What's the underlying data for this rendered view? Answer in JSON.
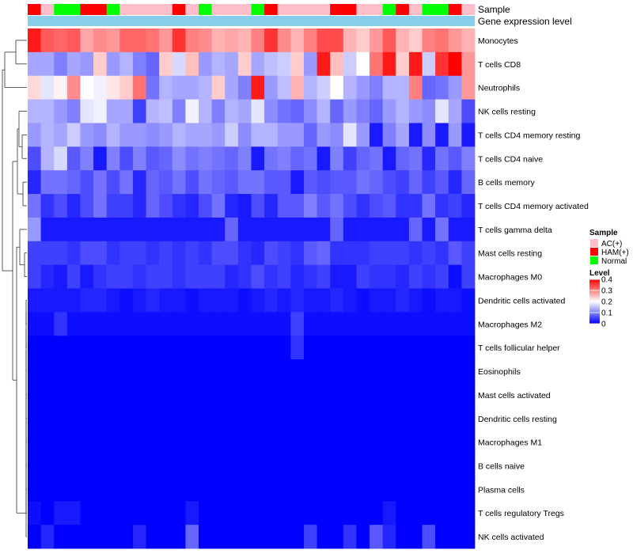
{
  "chart_data": {
    "type": "heatmap",
    "annotation_labels": {
      "sample": "Sample",
      "gene_expression": "Gene expression level"
    },
    "sample_groups": [
      "HAM(+)",
      "AC(+)",
      "Normal",
      "Normal",
      "HAM(+)",
      "HAM(+)",
      "Normal",
      "AC(+)",
      "AC(+)",
      "AC(+)",
      "AC(+)",
      "HAM(+)",
      "AC(+)",
      "Normal",
      "AC(+)",
      "AC(+)",
      "AC(+)",
      "Normal",
      "HAM(+)",
      "AC(+)",
      "AC(+)",
      "AC(+)",
      "AC(+)",
      "HAM(+)",
      "HAM(+)",
      "AC(+)",
      "AC(+)",
      "Normal",
      "HAM(+)",
      "AC(+)",
      "Normal",
      "Normal",
      "HAM(+)",
      "AC(+)"
    ],
    "rows": [
      "Monocytes",
      "T cells CD8",
      "Neutrophils",
      "NK cells resting",
      "T cells CD4 memory resting",
      "T cells CD4 naive",
      "B cells memory",
      "T cells CD4 memory activated",
      "T cells gamma delta",
      "Mast cells resting",
      "Macrophages M0",
      "Dendritic cells activated",
      "Macrophages M2",
      "T cells follicular helper",
      "Eosinophils",
      "Mast cells activated",
      "Dendritic cells resting",
      "Macrophages M1",
      "B cells naive",
      "Plasma cells",
      "T cells regulatory  Tregs",
      "NK cells activated"
    ],
    "values": [
      [
        0.38,
        0.33,
        0.32,
        0.33,
        0.27,
        0.29,
        0.28,
        0.32,
        0.32,
        0.31,
        0.28,
        0.36,
        0.3,
        0.29,
        0.26,
        0.27,
        0.26,
        0.3,
        0.36,
        0.29,
        0.26,
        0.3,
        0.34,
        0.34,
        0.26,
        0.24,
        0.28,
        0.33,
        0.26,
        0.24,
        0.3,
        0.31,
        0.28,
        0.26
      ],
      [
        0.13,
        0.13,
        0.1,
        0.13,
        0.12,
        0.24,
        0.12,
        0.14,
        0.1,
        0.08,
        0.24,
        0.17,
        0.25,
        0.12,
        0.14,
        0.13,
        0.24,
        0.13,
        0.15,
        0.16,
        0.24,
        0.12,
        0.38,
        0.25,
        0.16,
        0.2,
        0.31,
        0.38,
        0.24,
        0.38,
        0.16,
        0.36,
        0.4,
        0.28
      ],
      [
        0.23,
        0.18,
        0.21,
        0.29,
        0.2,
        0.19,
        0.22,
        0.24,
        0.31,
        0.09,
        0.14,
        0.13,
        0.13,
        0.14,
        0.24,
        0.13,
        0.1,
        0.38,
        0.12,
        0.15,
        0.26,
        0.14,
        0.16,
        0.2,
        0.14,
        0.12,
        0.1,
        0.14,
        0.14,
        0.3,
        0.08,
        0.09,
        0.12,
        0.28
      ],
      [
        0.14,
        0.14,
        0.12,
        0.1,
        0.18,
        0.19,
        0.13,
        0.13,
        0.05,
        0.14,
        0.15,
        0.1,
        0.19,
        0.14,
        0.1,
        0.14,
        0.13,
        0.18,
        0.11,
        0.09,
        0.08,
        0.11,
        0.14,
        0.08,
        0.12,
        0.1,
        0.08,
        0.12,
        0.14,
        0.12,
        0.11,
        0.18,
        0.13,
        0.06
      ],
      [
        0.12,
        0.14,
        0.13,
        0.16,
        0.12,
        0.11,
        0.14,
        0.12,
        0.12,
        0.11,
        0.12,
        0.14,
        0.13,
        0.13,
        0.12,
        0.16,
        0.11,
        0.14,
        0.14,
        0.12,
        0.12,
        0.08,
        0.12,
        0.11,
        0.18,
        0.12,
        0.02,
        0.1,
        0.13,
        0.02,
        0.11,
        0.02,
        0.12,
        0.02
      ],
      [
        0.06,
        0.14,
        0.17,
        0.07,
        0.1,
        0.02,
        0.1,
        0.06,
        0.1,
        0.07,
        0.08,
        0.11,
        0.09,
        0.1,
        0.09,
        0.08,
        0.1,
        0.02,
        0.09,
        0.1,
        0.08,
        0.09,
        0.02,
        0.1,
        0.05,
        0.08,
        0.09,
        0.02,
        0.08,
        0.09,
        0.03,
        0.09,
        0.07,
        0.1
      ],
      [
        0.03,
        0.09,
        0.09,
        0.08,
        0.06,
        0.09,
        0.06,
        0.09,
        0.03,
        0.08,
        0.07,
        0.09,
        0.06,
        0.09,
        0.08,
        0.07,
        0.09,
        0.09,
        0.07,
        0.07,
        0.02,
        0.07,
        0.06,
        0.07,
        0.07,
        0.09,
        0.08,
        0.06,
        0.05,
        0.08,
        0.05,
        0.07,
        0.03,
        0.08
      ],
      [
        0.09,
        0.04,
        0.06,
        0.03,
        0.06,
        0.09,
        0.05,
        0.05,
        0.03,
        0.08,
        0.06,
        0.04,
        0.03,
        0.06,
        0.09,
        0.03,
        0.02,
        0.06,
        0.03,
        0.07,
        0.07,
        0.1,
        0.07,
        0.09,
        0.06,
        0.04,
        0.06,
        0.07,
        0.04,
        0.04,
        0.09,
        0.04,
        0.05,
        0.03
      ],
      [
        0.12,
        0.02,
        0.02,
        0.02,
        0.02,
        0.02,
        0.02,
        0.02,
        0.02,
        0.02,
        0.02,
        0.02,
        0.02,
        0.02,
        0.02,
        0.08,
        0.02,
        0.02,
        0.02,
        0.02,
        0.02,
        0.02,
        0.02,
        0.08,
        0.02,
        0.02,
        0.02,
        0.02,
        0.02,
        0.08,
        0.02,
        0.09,
        0.02,
        0.02
      ],
      [
        0.05,
        0.05,
        0.05,
        0.04,
        0.06,
        0.06,
        0.04,
        0.05,
        0.05,
        0.04,
        0.05,
        0.04,
        0.05,
        0.04,
        0.06,
        0.06,
        0.04,
        0.03,
        0.06,
        0.05,
        0.04,
        0.07,
        0.08,
        0.04,
        0.04,
        0.04,
        0.05,
        0.05,
        0.05,
        0.04,
        0.05,
        0.04,
        0.07,
        0.05
      ],
      [
        0.05,
        0.03,
        0.02,
        0.05,
        0.02,
        0.04,
        0.05,
        0.05,
        0.04,
        0.05,
        0.05,
        0.04,
        0.05,
        0.05,
        0.05,
        0.03,
        0.04,
        0.06,
        0.04,
        0.05,
        0.03,
        0.04,
        0.05,
        0.02,
        0.02,
        0.05,
        0.04,
        0.04,
        0.03,
        0.05,
        0.04,
        0.05,
        0.01,
        0.05
      ],
      [
        0.02,
        0.02,
        0.02,
        0.02,
        0.03,
        0.03,
        0.02,
        0.01,
        0.02,
        0.03,
        0.02,
        0.02,
        0.01,
        0.02,
        0.02,
        0.02,
        0.01,
        0.02,
        0.03,
        0.02,
        0.03,
        0.02,
        0.02,
        0.03,
        0.02,
        0.01,
        0.02,
        0.02,
        0.03,
        0.02,
        0.01,
        0.02,
        0.02,
        0.01
      ],
      [
        0.01,
        0.01,
        0.04,
        0.01,
        0.01,
        0.01,
        0.01,
        0.01,
        0.01,
        0.01,
        0.01,
        0.01,
        0.01,
        0.01,
        0.01,
        0.01,
        0.01,
        0.01,
        0.01,
        0.01,
        0.05,
        0.01,
        0.01,
        0.01,
        0.01,
        0.01,
        0.01,
        0.01,
        0.01,
        0.01,
        0.01,
        0.01,
        0.01,
        0.01
      ],
      [
        0.0,
        0.0,
        0.0,
        0.0,
        0.0,
        0.0,
        0.0,
        0.0,
        0.0,
        0.0,
        0.0,
        0.0,
        0.0,
        0.0,
        0.0,
        0.0,
        0.0,
        0.0,
        0.0,
        0.0,
        0.04,
        0.0,
        0.0,
        0.0,
        0.0,
        0.0,
        0.0,
        0.0,
        0.0,
        0.0,
        0.0,
        0.0,
        0.0,
        0.0
      ],
      [
        0.0,
        0.0,
        0.0,
        0.0,
        0.0,
        0.0,
        0.0,
        0.0,
        0.0,
        0.0,
        0.0,
        0.0,
        0.0,
        0.0,
        0.0,
        0.0,
        0.0,
        0.0,
        0.0,
        0.0,
        0.0,
        0.0,
        0.0,
        0.0,
        0.0,
        0.0,
        0.0,
        0.0,
        0.0,
        0.0,
        0.0,
        0.0,
        0.0,
        0.0
      ],
      [
        0.0,
        0.0,
        0.0,
        0.0,
        0.0,
        0.0,
        0.0,
        0.0,
        0.0,
        0.0,
        0.0,
        0.0,
        0.0,
        0.0,
        0.0,
        0.0,
        0.0,
        0.0,
        0.0,
        0.0,
        0.0,
        0.0,
        0.0,
        0.0,
        0.0,
        0.0,
        0.0,
        0.0,
        0.0,
        0.0,
        0.0,
        0.0,
        0.0,
        0.0
      ],
      [
        0.0,
        0.0,
        0.0,
        0.0,
        0.0,
        0.0,
        0.0,
        0.0,
        0.0,
        0.0,
        0.0,
        0.0,
        0.0,
        0.0,
        0.0,
        0.0,
        0.0,
        0.0,
        0.0,
        0.0,
        0.0,
        0.0,
        0.0,
        0.0,
        0.0,
        0.0,
        0.0,
        0.0,
        0.0,
        0.0,
        0.0,
        0.0,
        0.0,
        0.0
      ],
      [
        0.0,
        0.0,
        0.0,
        0.0,
        0.0,
        0.0,
        0.0,
        0.0,
        0.0,
        0.0,
        0.0,
        0.0,
        0.0,
        0.0,
        0.0,
        0.0,
        0.0,
        0.0,
        0.0,
        0.0,
        0.0,
        0.0,
        0.0,
        0.0,
        0.0,
        0.0,
        0.0,
        0.0,
        0.0,
        0.0,
        0.0,
        0.0,
        0.0,
        0.0
      ],
      [
        0.0,
        0.0,
        0.0,
        0.0,
        0.0,
        0.0,
        0.0,
        0.0,
        0.0,
        0.0,
        0.0,
        0.0,
        0.0,
        0.0,
        0.0,
        0.0,
        0.0,
        0.0,
        0.0,
        0.0,
        0.0,
        0.0,
        0.0,
        0.0,
        0.0,
        0.0,
        0.0,
        0.0,
        0.0,
        0.0,
        0.0,
        0.0,
        0.0,
        0.0
      ],
      [
        0.0,
        0.0,
        0.0,
        0.0,
        0.0,
        0.0,
        0.0,
        0.0,
        0.0,
        0.0,
        0.0,
        0.0,
        0.0,
        0.0,
        0.0,
        0.0,
        0.0,
        0.0,
        0.0,
        0.0,
        0.0,
        0.0,
        0.0,
        0.0,
        0.0,
        0.0,
        0.0,
        0.0,
        0.0,
        0.0,
        0.0,
        0.0,
        0.0,
        0.0
      ],
      [
        0.01,
        0.0,
        0.02,
        0.02,
        0.0,
        0.0,
        0.0,
        0.0,
        0.0,
        0.0,
        0.0,
        0.0,
        0.02,
        0.0,
        0.0,
        0.0,
        0.0,
        0.0,
        0.0,
        0.0,
        0.0,
        0.0,
        0.0,
        0.0,
        0.0,
        0.0,
        0.0,
        0.02,
        0.0,
        0.0,
        0.0,
        0.0,
        0.0,
        0.0
      ],
      [
        0.0,
        0.03,
        0.0,
        0.0,
        0.0,
        0.0,
        0.0,
        0.0,
        0.03,
        0.0,
        0.0,
        0.0,
        0.08,
        0.0,
        0.0,
        0.0,
        0.0,
        0.0,
        0.0,
        0.0,
        0.0,
        0.05,
        0.0,
        0.0,
        0.04,
        0.0,
        0.07,
        0.03,
        0.0,
        0.0,
        0.06,
        0.0,
        0.0,
        0.0
      ]
    ],
    "value_range": [
      0,
      0.4
    ],
    "colors": {
      "low": "#0000ff",
      "mid": "#ffffff",
      "high": "#ff0000",
      "gene_expression_bar": "#87ceeb"
    },
    "group_colors": {
      "AC(+)": "#ffc0cb",
      "HAM(+)": "#ff0000",
      "Normal": "#00ff00"
    },
    "legend": {
      "sample_title": "Sample",
      "sample_items": [
        "AC(+)",
        "HAM(+)",
        "Normal"
      ],
      "level_title": "Level",
      "level_ticks": [
        {
          "value": 0.4,
          "label": "0.4"
        },
        {
          "value": 0.3,
          "label": "0.3"
        },
        {
          "value": 0.2,
          "label": "0.2"
        },
        {
          "value": 0.1,
          "label": "0.1"
        },
        {
          "value": 0,
          "label": "0"
        }
      ]
    },
    "dendrogram": "left"
  }
}
